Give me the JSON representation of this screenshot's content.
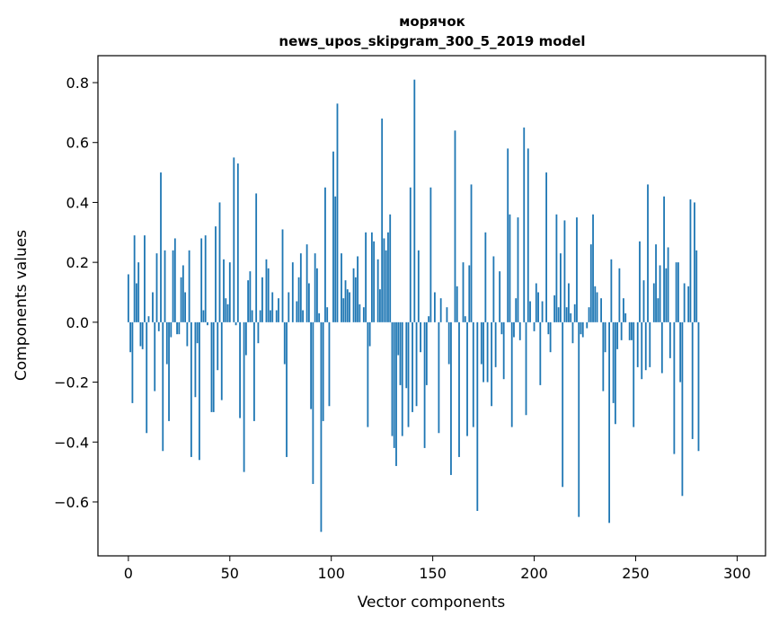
{
  "chart_data": {
    "type": "bar",
    "title": "морячок",
    "subtitle": "news_upos_skipgram_300_5_2019 model",
    "xlabel": "Vector components",
    "ylabel": "Components values",
    "xlim": [
      -15,
      314
    ],
    "ylim": [
      -0.78,
      0.89
    ],
    "xticks": [
      0,
      50,
      100,
      150,
      200,
      250,
      300
    ],
    "xtick_labels": [
      "0",
      "50",
      "100",
      "150",
      "200",
      "250",
      "300"
    ],
    "yticks": [
      -0.6,
      -0.4,
      -0.2,
      0.0,
      0.2,
      0.4,
      0.6,
      0.8
    ],
    "ytick_labels": [
      "−0.6",
      "−0.4",
      "−0.2",
      "0.0",
      "0.2",
      "0.4",
      "0.6",
      "0.8"
    ],
    "grid": false,
    "bar_color": "#1f77b4",
    "x_start": 0,
    "values": [
      0.16,
      -0.1,
      -0.27,
      0.29,
      0.13,
      0.2,
      -0.08,
      -0.09,
      0.29,
      -0.37,
      0.02,
      0.0,
      0.1,
      -0.23,
      0.23,
      -0.03,
      0.5,
      -0.43,
      0.24,
      -0.14,
      -0.33,
      -0.05,
      0.24,
      0.28,
      -0.04,
      -0.04,
      0.15,
      0.19,
      0.1,
      -0.08,
      0.24,
      -0.45,
      0.0,
      -0.25,
      -0.07,
      -0.46,
      0.28,
      0.04,
      0.29,
      -0.01,
      0.0,
      -0.3,
      -0.3,
      0.32,
      -0.16,
      0.4,
      -0.26,
      0.21,
      0.08,
      0.06,
      0.2,
      0.0,
      0.55,
      -0.01,
      0.53,
      -0.32,
      0.0,
      -0.5,
      -0.11,
      0.14,
      0.17,
      0.04,
      -0.33,
      0.43,
      -0.07,
      0.04,
      0.15,
      0.0,
      0.21,
      0.18,
      0.04,
      0.1,
      0.0,
      0.04,
      0.08,
      0.0,
      0.31,
      -0.14,
      -0.45,
      0.1,
      0.0,
      0.2,
      0.0,
      0.07,
      0.15,
      0.23,
      0.04,
      0.0,
      0.26,
      0.13,
      -0.29,
      -0.54,
      0.23,
      0.18,
      0.03,
      -0.7,
      -0.33,
      0.45,
      0.05,
      -0.28,
      0.0,
      0.57,
      0.42,
      0.73,
      0.0,
      0.23,
      0.08,
      0.14,
      0.11,
      0.1,
      0.0,
      0.18,
      0.15,
      0.22,
      0.06,
      0.0,
      0.05,
      0.3,
      -0.35,
      -0.08,
      0.3,
      0.27,
      0.0,
      0.21,
      0.11,
      0.68,
      0.28,
      0.24,
      0.3,
      0.36,
      -0.38,
      -0.42,
      -0.48,
      -0.11,
      -0.21,
      -0.38,
      0.0,
      -0.22,
      -0.35,
      0.45,
      -0.3,
      0.81,
      -0.28,
      0.24,
      -0.1,
      0.0,
      -0.42,
      -0.21,
      0.02,
      0.45,
      0.0,
      0.1,
      0.0,
      -0.37,
      0.08,
      0.0,
      0.0,
      0.05,
      -0.14,
      -0.51,
      0.0,
      0.64,
      0.12,
      -0.45,
      0.0,
      0.2,
      0.02,
      -0.38,
      0.19,
      0.46,
      -0.35,
      0.0,
      -0.63,
      0.0,
      -0.14,
      -0.2,
      0.3,
      -0.2,
      0.0,
      -0.28,
      0.22,
      -0.15,
      0.0,
      0.17,
      -0.04,
      -0.19,
      0.0,
      0.58,
      0.36,
      -0.35,
      -0.05,
      0.08,
      0.35,
      -0.06,
      0.0,
      0.65,
      -0.31,
      0.58,
      0.07,
      0.0,
      -0.03,
      0.13,
      0.1,
      -0.21,
      0.07,
      0.0,
      0.5,
      -0.04,
      -0.1,
      0.0,
      0.09,
      0.36,
      0.05,
      0.23,
      -0.55,
      0.34,
      0.05,
      0.13,
      0.03,
      -0.07,
      0.06,
      0.35,
      -0.65,
      -0.04,
      -0.05,
      0.0,
      -0.02,
      0.05,
      0.26,
      0.36,
      0.12,
      0.1,
      0.0,
      0.08,
      -0.23,
      -0.1,
      0.0,
      -0.67,
      0.21,
      -0.27,
      -0.34,
      -0.09,
      0.18,
      -0.06,
      0.08,
      0.03,
      0.0,
      -0.06,
      -0.06,
      -0.35,
      0.0,
      -0.15,
      0.27,
      -0.19,
      0.14,
      -0.16,
      0.46,
      -0.15,
      0.0,
      0.13,
      0.26,
      0.08,
      0.19,
      -0.17,
      0.42,
      0.18,
      0.25,
      -0.12,
      0.0,
      -0.44,
      0.2,
      0.2,
      -0.2,
      -0.58,
      0.13,
      0.0,
      0.12,
      0.41,
      -0.39,
      0.4,
      0.24,
      -0.43,
      0.0
    ]
  }
}
